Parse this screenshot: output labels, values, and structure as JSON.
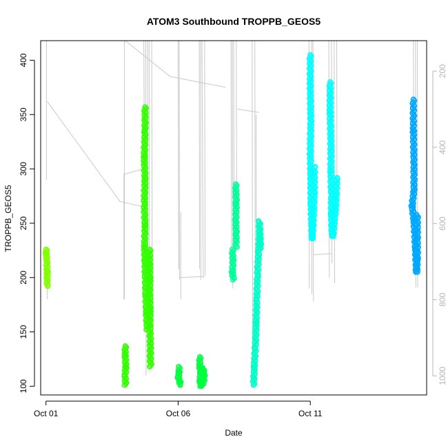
{
  "chart_data": {
    "type": "scatter",
    "title": "ATOM3 Southbound TROPPB_GEOS5",
    "xlabel": "Date",
    "ylabel": "TROPPB_GEOS5",
    "x_ticks": [
      {
        "label": "Oct 01",
        "day": 1
      },
      {
        "label": "Oct 06",
        "day": 6
      },
      {
        "label": "Oct 11",
        "day": 11
      }
    ],
    "xlim": [
      0.8,
      15.4
    ],
    "ylim": [
      92,
      418
    ],
    "y_ticks": [
      100,
      150,
      200,
      250,
      300,
      350,
      400
    ],
    "y2_ticks": [
      200,
      400,
      600,
      800,
      1000
    ],
    "y2lim": [
      120,
      1050
    ],
    "y2_reversed": true,
    "colors": {
      "background_profile": "#c8c8c8",
      "yellowgreen": "#80ff00",
      "green": "#33ff00",
      "springgreen": "#00ff40",
      "aquamarine": "#00ff99",
      "turquoise": "#00ffc8",
      "cyan": "#00ffff",
      "azure": "#00a8ff"
    },
    "series": [
      {
        "color": "#80ff00",
        "points": [
          [
            1.0,
            226
          ],
          [
            1.02,
            222
          ],
          [
            1.03,
            215
          ],
          [
            1.05,
            205
          ],
          [
            1.04,
            198
          ],
          [
            1.05,
            192
          ]
        ]
      },
      {
        "color": "#33ff00",
        "points": [
          [
            4.0,
            137
          ],
          [
            4.0,
            128
          ],
          [
            4.02,
            118
          ],
          [
            4.0,
            110
          ],
          [
            4.01,
            101
          ]
        ]
      },
      {
        "color": "#33ff00",
        "points": [
          [
            4.75,
            357
          ],
          [
            4.75,
            335
          ],
          [
            4.72,
            311
          ],
          [
            4.75,
            290
          ],
          [
            4.72,
            268
          ],
          [
            4.75,
            248
          ],
          [
            4.73,
            228
          ],
          [
            4.75,
            215
          ],
          [
            4.76,
            198
          ],
          [
            4.78,
            183
          ],
          [
            4.8,
            168
          ],
          [
            4.83,
            152
          ]
        ]
      },
      {
        "color": "#33ff00",
        "points": [
          [
            4.92,
            226
          ],
          [
            4.92,
            212
          ],
          [
            4.93,
            198
          ],
          [
            4.92,
            184
          ],
          [
            4.94,
            170
          ],
          [
            4.93,
            156
          ],
          [
            4.95,
            140
          ],
          [
            4.95,
            128
          ],
          [
            4.96,
            118
          ]
        ]
      },
      {
        "color": "#00ff40",
        "points": [
          [
            6.02,
            118
          ],
          [
            6.05,
            113
          ],
          [
            6.0,
            108
          ],
          [
            6.08,
            104
          ],
          [
            6.05,
            101
          ]
        ]
      },
      {
        "color": "#00ff40",
        "points": [
          [
            6.82,
            127
          ],
          [
            6.82,
            118
          ],
          [
            6.85,
            112
          ],
          [
            6.83,
            105
          ],
          [
            6.86,
            100
          ],
          [
            6.95,
            117
          ],
          [
            6.98,
            110
          ],
          [
            6.96,
            102
          ]
        ]
      },
      {
        "color": "#00ff99",
        "points": [
          [
            8.05,
            226
          ],
          [
            8.08,
            215
          ],
          [
            8.05,
            205
          ],
          [
            8.1,
            198
          ]
        ]
      },
      {
        "color": "#00ff99",
        "points": [
          [
            8.18,
            286
          ],
          [
            8.2,
            268
          ],
          [
            8.18,
            252
          ],
          [
            8.2,
            240
          ],
          [
            8.19,
            228
          ]
        ]
      },
      {
        "color": "#00ffc8",
        "points": [
          [
            8.85,
            101
          ],
          [
            8.87,
            108
          ],
          [
            8.88,
            118
          ],
          [
            8.92,
            135
          ],
          [
            8.95,
            158
          ],
          [
            8.98,
            180
          ],
          [
            9.0,
            202
          ],
          [
            9.05,
            226
          ],
          [
            9.08,
            240
          ],
          [
            9.07,
            252
          ],
          [
            9.12,
            227
          ]
        ]
      },
      {
        "color": "#00ffff",
        "points": [
          [
            11.0,
            405
          ],
          [
            11.0,
            375
          ],
          [
            11.02,
            345
          ],
          [
            11.0,
            315
          ],
          [
            11.02,
            290
          ],
          [
            11.03,
            268
          ],
          [
            11.05,
            250
          ],
          [
            11.07,
            236
          ],
          [
            11.1,
            248
          ],
          [
            11.12,
            262
          ],
          [
            11.15,
            278
          ],
          [
            11.15,
            302
          ]
        ]
      },
      {
        "color": "#00ffff",
        "points": [
          [
            11.75,
            380
          ],
          [
            11.75,
            352
          ],
          [
            11.78,
            322
          ],
          [
            11.78,
            298
          ],
          [
            11.8,
            276
          ],
          [
            11.8,
            258
          ],
          [
            11.82,
            242
          ],
          [
            11.85,
            238
          ],
          [
            11.95,
            262
          ],
          [
            11.98,
            275
          ],
          [
            12.0,
            292
          ]
        ]
      },
      {
        "color": "#00a8ff",
        "points": [
          [
            14.9,
            364
          ],
          [
            14.9,
            335
          ],
          [
            14.92,
            305
          ],
          [
            14.92,
            280
          ],
          [
            14.85,
            266
          ],
          [
            14.92,
            252
          ],
          [
            14.95,
            240
          ],
          [
            14.98,
            226
          ],
          [
            15.0,
            214
          ],
          [
            15.02,
            205
          ],
          [
            15.05,
            218
          ],
          [
            15.05,
            258
          ]
        ]
      }
    ],
    "background_segments": [
      [
        [
          1.02,
          290
        ],
        [
          1.02,
          418
        ]
      ],
      [
        [
          1.05,
          192
        ],
        [
          1.05,
          180
        ]
      ],
      [
        [
          1.05,
          362
        ],
        [
          3.8,
          270
        ],
        [
          4.7,
          265
        ]
      ],
      [
        [
          3.95,
          180
        ],
        [
          3.95,
          295
        ],
        [
          4.7,
          300
        ]
      ],
      [
        [
          3.97,
          180
        ],
        [
          3.97,
          418
        ]
      ],
      [
        [
          4.7,
          418
        ],
        [
          4.75,
          200
        ]
      ],
      [
        [
          4.77,
          418
        ],
        [
          4.79,
          110
        ]
      ],
      [
        [
          4.84,
          418
        ],
        [
          4.86,
          150
        ]
      ],
      [
        [
          4.9,
          418
        ],
        [
          4.93,
          130
        ]
      ],
      [
        [
          5.0,
          418
        ],
        [
          5.02,
          180
        ]
      ],
      [
        [
          4.0,
          418
        ],
        [
          5.7,
          385
        ],
        [
          7.8,
          375
        ]
      ],
      [
        [
          6.0,
          418
        ],
        [
          6.02,
          208
        ]
      ],
      [
        [
          6.04,
          418
        ],
        [
          6.05,
          198
        ]
      ],
      [
        [
          6.05,
          200
        ],
        [
          7.0,
          201
        ]
      ],
      [
        [
          6.1,
          180
        ],
        [
          6.1,
          260
        ]
      ],
      [
        [
          6.8,
          418
        ],
        [
          6.81,
          208
        ]
      ],
      [
        [
          6.85,
          418
        ],
        [
          6.86,
          198
        ]
      ],
      [
        [
          6.9,
          418
        ],
        [
          6.95,
          200
        ]
      ],
      [
        [
          7.0,
          418
        ],
        [
          7.02,
          202
        ]
      ],
      [
        [
          8.0,
          418
        ],
        [
          8.02,
          200
        ]
      ],
      [
        [
          8.05,
          418
        ],
        [
          8.07,
          190
        ]
      ],
      [
        [
          8.1,
          418
        ],
        [
          8.12,
          195
        ]
      ],
      [
        [
          8.2,
          418
        ],
        [
          8.22,
          240
        ]
      ],
      [
        [
          8.25,
          355
        ],
        [
          9.05,
          352
        ]
      ],
      [
        [
          8.8,
          418
        ],
        [
          8.82,
          100
        ]
      ],
      [
        [
          8.9,
          418
        ],
        [
          8.92,
          118
        ]
      ],
      [
        [
          8.95,
          350
        ],
        [
          8.96,
          190
        ]
      ],
      [
        [
          10.95,
          418
        ],
        [
          10.96,
          190
        ]
      ],
      [
        [
          11.05,
          418
        ],
        [
          11.06,
          185
        ]
      ],
      [
        [
          11.1,
          418
        ],
        [
          11.12,
          178
        ]
      ],
      [
        [
          11.12,
          221
        ],
        [
          11.8,
          222
        ]
      ],
      [
        [
          11.7,
          418
        ],
        [
          11.72,
          200
        ]
      ],
      [
        [
          11.8,
          418
        ],
        [
          11.82,
          213
        ]
      ],
      [
        [
          11.9,
          418
        ],
        [
          11.92,
          195
        ]
      ],
      [
        [
          12.0,
          418
        ],
        [
          12.01,
          240
        ]
      ],
      [
        [
          14.9,
          418
        ],
        [
          14.92,
          205
        ]
      ],
      [
        [
          14.98,
          418
        ],
        [
          14.99,
          191
        ]
      ],
      [
        [
          15.05,
          418
        ],
        [
          15.06,
          191
        ]
      ]
    ]
  }
}
